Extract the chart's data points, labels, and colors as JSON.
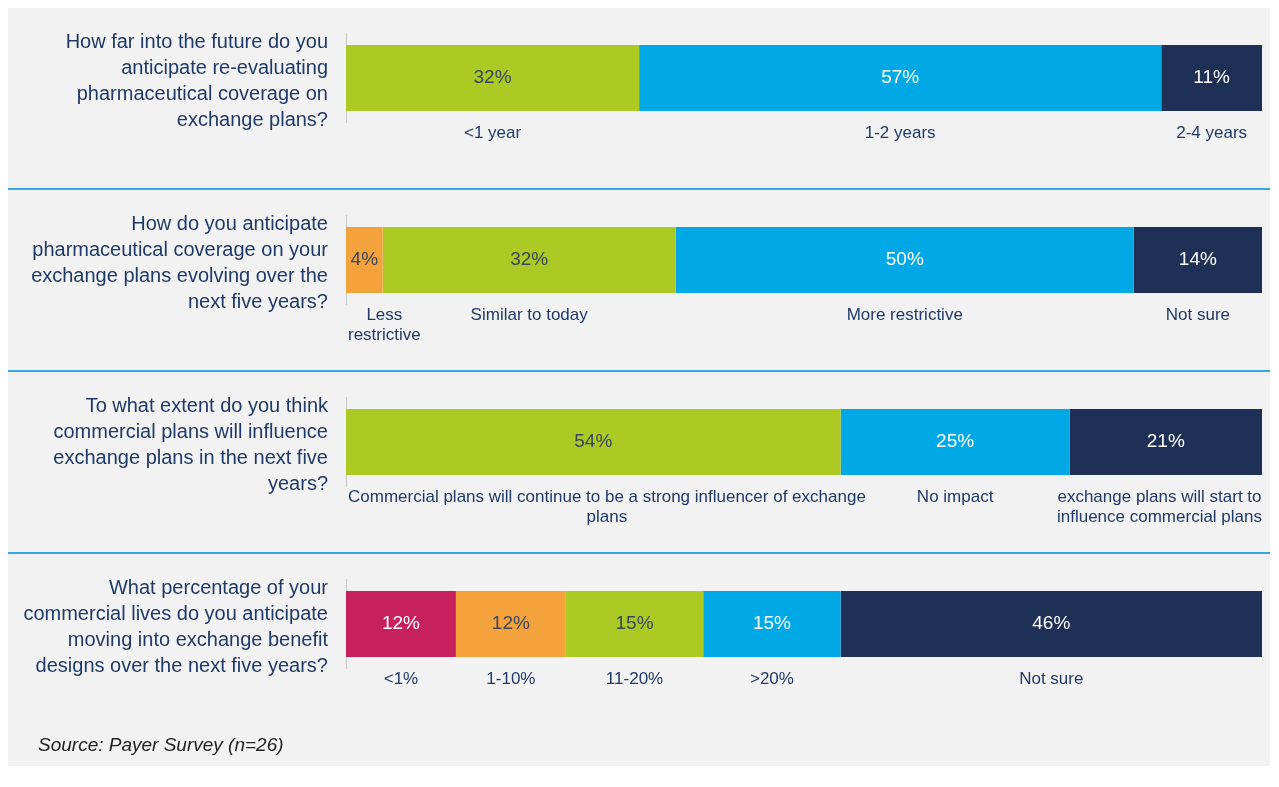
{
  "chart_data": [
    {
      "type": "bar",
      "orientation": "horizontal",
      "stacked": true,
      "title": "How far into the future do you anticipate re-evaluating pharmaceutical coverage on exchange plans?",
      "categories": [
        null
      ],
      "xlim": [
        0,
        100
      ],
      "tick_labels": false,
      "grid": false,
      "legend": false,
      "series": [
        {
          "name": "<1 year",
          "color": "#adc924",
          "values": [
            32
          ],
          "value_labels": [
            "32%"
          ]
        },
        {
          "name": "1-2 years",
          "color": "#00a9e6",
          "values": [
            57
          ],
          "value_labels": [
            "57%"
          ]
        },
        {
          "name": "2-4 years",
          "color": "#1f3057",
          "values": [
            11
          ],
          "value_labels": [
            "11%"
          ]
        }
      ]
    },
    {
      "type": "bar",
      "orientation": "horizontal",
      "stacked": true,
      "title": "How do you anticipate pharmaceutical coverage on your exchange plans evolving over the next five years?",
      "categories": [
        null
      ],
      "xlim": [
        0,
        100
      ],
      "tick_labels": false,
      "grid": false,
      "legend": false,
      "series": [
        {
          "name": "Less restrictive",
          "color": "#f4a23c",
          "values": [
            4
          ],
          "value_labels": [
            "4%"
          ]
        },
        {
          "name": "Similar to today",
          "color": "#adc924",
          "values": [
            32
          ],
          "value_labels": [
            "32%"
          ]
        },
        {
          "name": "More restrictive",
          "color": "#00a9e6",
          "values": [
            50
          ],
          "value_labels": [
            "50%"
          ]
        },
        {
          "name": "Not sure",
          "color": "#1f3057",
          "values": [
            14
          ],
          "value_labels": [
            "14%"
          ]
        }
      ]
    },
    {
      "type": "bar",
      "orientation": "horizontal",
      "stacked": true,
      "title": "To what extent do you think commercial plans will influence exchange plans in the next five years?",
      "categories": [
        null
      ],
      "xlim": [
        0,
        100
      ],
      "tick_labels": false,
      "grid": false,
      "legend": false,
      "series": [
        {
          "name": "Commercial plans will continue to be a strong influencer of exchange plans",
          "color": "#adc924",
          "values": [
            54
          ],
          "value_labels": [
            "54%"
          ]
        },
        {
          "name": "No impact",
          "color": "#00a9e6",
          "values": [
            25
          ],
          "value_labels": [
            "25%"
          ]
        },
        {
          "name": "exchange plans will start to influence commercial plans",
          "color": "#1f3057",
          "values": [
            21
          ],
          "value_labels": [
            "21%"
          ]
        }
      ]
    },
    {
      "type": "bar",
      "orientation": "horizontal",
      "stacked": true,
      "title": "What percentage of your commercial lives do you anticipate moving into exchange benefit designs over the next five years?",
      "categories": [
        null
      ],
      "xlim": [
        0,
        100
      ],
      "tick_labels": false,
      "grid": false,
      "legend": false,
      "annotations": [
        "Source: Payer Survey (n=26)"
      ],
      "series": [
        {
          "name": "<1%",
          "color": "#c7215d",
          "values": [
            12
          ],
          "value_labels": [
            "12%"
          ]
        },
        {
          "name": "1-10%",
          "color": "#f4a23c",
          "values": [
            12
          ],
          "value_labels": [
            "12%"
          ]
        },
        {
          "name": "11-20%",
          "color": "#adc924",
          "values": [
            15
          ],
          "value_labels": [
            "15%"
          ]
        },
        {
          "name": ">20%",
          "color": "#00a9e6",
          "values": [
            15
          ],
          "value_labels": [
            "15%"
          ]
        },
        {
          "name": "Not sure",
          "color": "#1f3057",
          "values": [
            46
          ],
          "value_labels": [
            "46%"
          ]
        }
      ]
    }
  ]
}
